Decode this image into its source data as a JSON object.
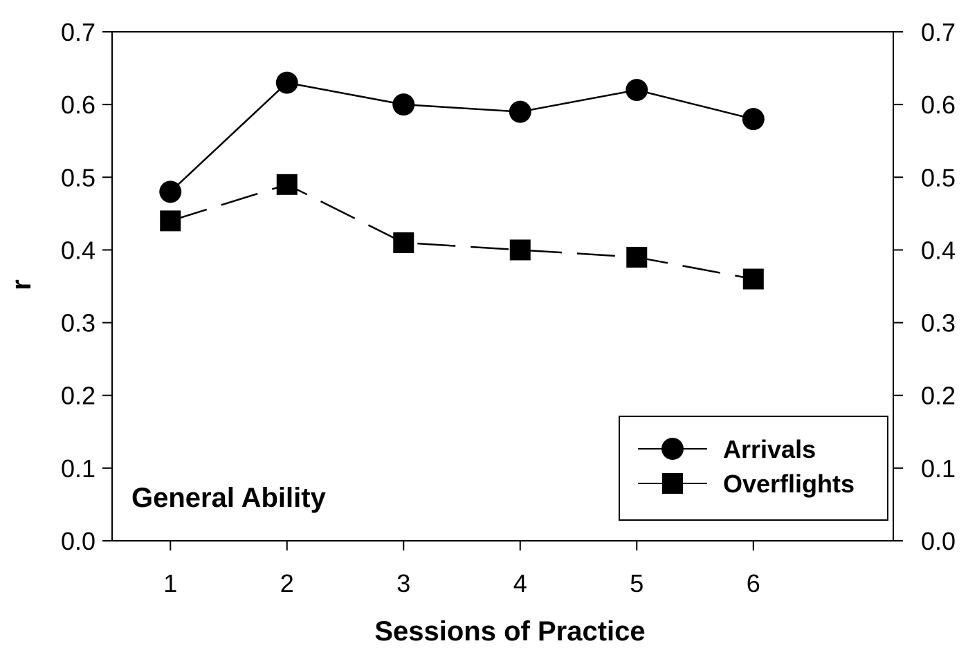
{
  "chart_data": {
    "type": "line",
    "title": "",
    "annotation": "General Ability",
    "xlabel": "Sessions of Practice",
    "ylabel": "r",
    "x": [
      1,
      2,
      3,
      4,
      5,
      6
    ],
    "x_tick_labels": [
      "1",
      "2",
      "3",
      "4",
      "5",
      "6"
    ],
    "xlim": [
      0.5,
      7.2
    ],
    "ylim": [
      0.0,
      0.7
    ],
    "y_ticks": [
      "0.0",
      "0.1",
      "0.2",
      "0.3",
      "0.4",
      "0.5",
      "0.6",
      "0.7"
    ],
    "y2_ticks": [
      "0.0",
      "0.1",
      "0.2",
      "0.3",
      "0.4",
      "0.5",
      "0.6",
      "0.7"
    ],
    "grid": false,
    "legend_position": "bottom-right",
    "series": [
      {
        "name": "Arrivals",
        "marker": "circle",
        "line": "solid",
        "color": "#000000",
        "values": [
          0.48,
          0.63,
          0.6,
          0.59,
          0.62,
          0.58
        ]
      },
      {
        "name": "Overflights",
        "marker": "square",
        "line": "dashed",
        "color": "#000000",
        "values": [
          0.44,
          0.49,
          0.41,
          0.4,
          0.39,
          0.36
        ]
      }
    ]
  }
}
